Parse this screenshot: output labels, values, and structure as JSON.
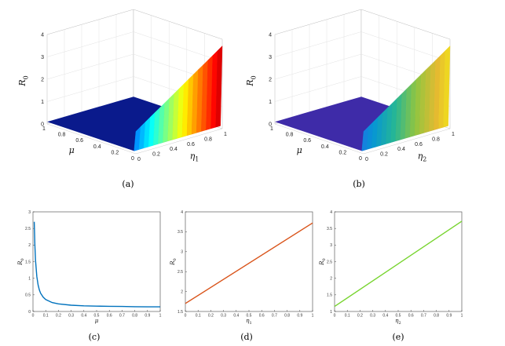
{
  "chart_data": [
    {
      "panel": "(a)",
      "type": "surface3d",
      "zlabel": "R",
      "zlabel_sub": "0",
      "xlabel": "μ",
      "ylabel": "η",
      "ylabel_sub": "1",
      "x_ticks": [
        "1",
        "0.8",
        "0.6",
        "0.4",
        "0.2",
        "0"
      ],
      "y_ticks": [
        "0",
        "0.2",
        "0.4",
        "0.6",
        "0.8",
        "1"
      ],
      "z_ticks": [
        "0",
        "1",
        "2",
        "3",
        "4"
      ],
      "xlim": [
        0,
        1
      ],
      "ylim": [
        0,
        1
      ],
      "zlim": [
        0,
        4
      ],
      "colormap": "jet",
      "surface": {
        "z_at_mu0_eta0": 1.0,
        "z_at_mu0_eta1": 3.7,
        "z_for_mu_gt_0": 0.1
      }
    },
    {
      "panel": "(b)",
      "type": "surface3d",
      "zlabel": "R",
      "zlabel_sub": "0",
      "xlabel": "μ",
      "ylabel": "η",
      "ylabel_sub": "2",
      "x_ticks": [
        "1",
        "0.8",
        "0.6",
        "0.4",
        "0.2",
        "0"
      ],
      "y_ticks": [
        "0",
        "0.2",
        "0.4",
        "0.6",
        "0.8",
        "1"
      ],
      "z_ticks": [
        "0",
        "1",
        "2",
        "3",
        "4"
      ],
      "xlim": [
        0,
        1
      ],
      "ylim": [
        0,
        1
      ],
      "zlim": [
        0,
        4
      ],
      "colormap": "parula",
      "surface": {
        "z_at_mu0_eta0": 1.0,
        "z_at_mu0_eta1": 3.7,
        "z_for_mu_gt_0": 0.1
      }
    },
    {
      "panel": "(c)",
      "type": "line",
      "xlabel": "μ",
      "ylabel": "R",
      "ylabel_sub": "0",
      "xlim": [
        0,
        1
      ],
      "ylim": [
        0,
        3
      ],
      "x_ticks": [
        "0",
        "0.1",
        "0.2",
        "0.3",
        "0.4",
        "0.5",
        "0.6",
        "0.7",
        "0.8",
        "0.9",
        "1"
      ],
      "y_ticks": [
        "0",
        "0.5",
        "1",
        "1.5",
        "2",
        "2.5",
        "3"
      ],
      "color": "#0072BD",
      "series": [
        {
          "x": [
            0.01,
            0.015,
            0.02,
            0.03,
            0.04,
            0.05,
            0.06,
            0.08,
            0.1,
            0.15,
            0.2,
            0.3,
            0.4,
            0.5,
            0.6,
            0.7,
            0.8,
            0.9,
            1.0
          ],
          "y": [
            2.7,
            2.0,
            1.55,
            1.05,
            0.8,
            0.65,
            0.55,
            0.43,
            0.36,
            0.27,
            0.23,
            0.19,
            0.17,
            0.16,
            0.155,
            0.15,
            0.145,
            0.14,
            0.14
          ]
        }
      ]
    },
    {
      "panel": "(d)",
      "type": "line",
      "xlabel": "η",
      "xlabel_sub": "1",
      "ylabel": "R",
      "ylabel_sub": "0",
      "xlim": [
        0,
        1
      ],
      "ylim": [
        1.5,
        4
      ],
      "x_ticks": [
        "0",
        "0.1",
        "0.2",
        "0.3",
        "0.4",
        "0.5",
        "0.6",
        "0.7",
        "0.8",
        "0.9",
        "1"
      ],
      "y_ticks": [
        "1.5",
        "2",
        "2.5",
        "3",
        "3.5",
        "4"
      ],
      "color": "#D95319",
      "series": [
        {
          "x": [
            0,
            1
          ],
          "y": [
            1.7,
            3.72
          ]
        }
      ]
    },
    {
      "panel": "(e)",
      "type": "line",
      "xlabel": "η",
      "xlabel_sub": "2",
      "ylabel": "R",
      "ylabel_sub": "0",
      "xlim": [
        0,
        1
      ],
      "ylim": [
        1,
        4
      ],
      "x_ticks": [
        "0",
        "0.1",
        "0.2",
        "0.3",
        "0.4",
        "0.5",
        "0.6",
        "0.7",
        "0.8",
        "0.9",
        "1"
      ],
      "y_ticks": [
        "1",
        "1.5",
        "2",
        "2.5",
        "3",
        "3.5",
        "4"
      ],
      "color": "#77D42E",
      "series": [
        {
          "x": [
            0,
            1
          ],
          "y": [
            1.15,
            3.72
          ]
        }
      ]
    }
  ]
}
